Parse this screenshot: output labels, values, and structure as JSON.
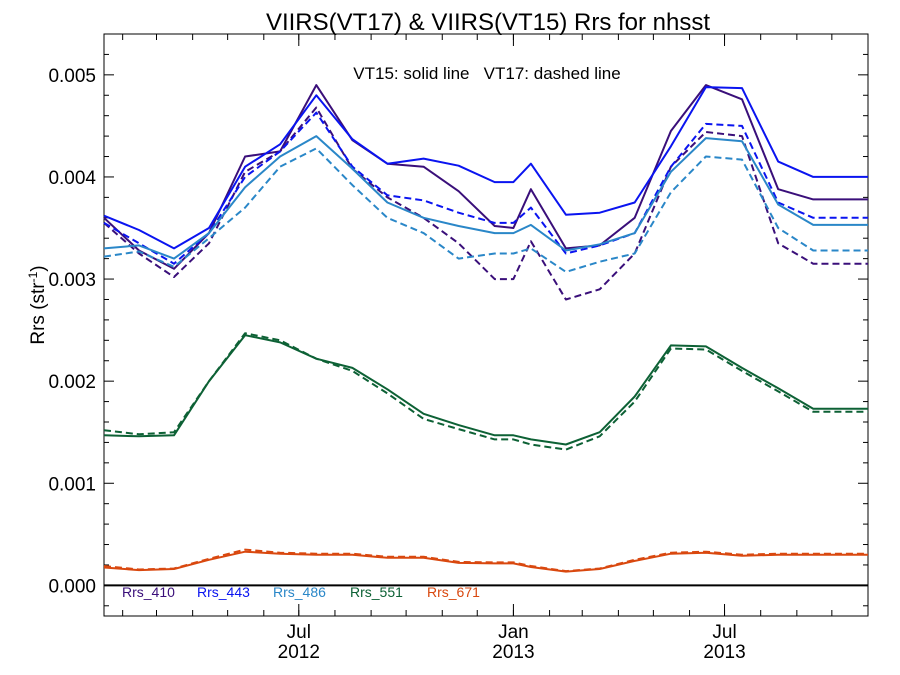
{
  "chart_data": {
    "type": "line",
    "title": "VIIRS(VT17) & VIIRS(VT15)  Rrs for nhsst",
    "annotation": "VT15: solid line   VT17: dashed line",
    "ylabel_main": "Rrs (str",
    "ylabel_sup": "-1",
    "ylabel_close": ")",
    "xlim": [
      "2012-01-16",
      "2013-11-01"
    ],
    "ylim": [
      -0.0003,
      0.0054
    ],
    "y_ticks": [
      0.0,
      0.001,
      0.002,
      0.003,
      0.004,
      0.005
    ],
    "y_tick_labels": [
      "0.000",
      "0.001",
      "0.002",
      "0.003",
      "0.004",
      "0.005"
    ],
    "x_ticks": [
      {
        "date": "2012-07-01",
        "line1": "Jul",
        "line2": "2012"
      },
      {
        "date": "2013-01-01",
        "line1": "Jan",
        "line2": "2013"
      },
      {
        "date": "2013-07-01",
        "line1": "Jul",
        "line2": "2013"
      }
    ],
    "dates": [
      "2012-01-16",
      "2012-02-15",
      "2012-03-16",
      "2012-04-15",
      "2012-05-16",
      "2012-06-15",
      "2012-07-16",
      "2012-08-16",
      "2012-09-15",
      "2012-10-16",
      "2012-11-15",
      "2012-12-16",
      "2013-01-01",
      "2013-01-16",
      "2013-02-15",
      "2013-03-16",
      "2013-04-15",
      "2013-05-16",
      "2013-06-15",
      "2013-07-16",
      "2013-08-16",
      "2013-09-15",
      "2013-10-16",
      "2013-11-01"
    ],
    "legend_position": "bottom-left",
    "series": [
      {
        "name": "Rrs_410",
        "color": "#3a0f7a",
        "vt15": [
          0.0036,
          0.00328,
          0.0031,
          0.00345,
          0.0042,
          0.00425,
          0.0049,
          0.00436,
          0.00413,
          0.0041,
          0.00386,
          0.00352,
          0.0035,
          0.00388,
          0.0033,
          0.00333,
          0.0036,
          0.00445,
          0.0049,
          0.00476,
          0.00388,
          0.00378,
          0.00378,
          0.00378
        ],
        "vt17": [
          0.00355,
          0.00325,
          0.00302,
          0.00335,
          0.00405,
          0.00425,
          0.00468,
          0.00408,
          0.0038,
          0.0036,
          0.00335,
          0.003,
          0.003,
          0.00337,
          0.0028,
          0.0029,
          0.00325,
          0.0041,
          0.00444,
          0.0044,
          0.00335,
          0.00315,
          0.00315,
          0.00315
        ]
      },
      {
        "name": "Rrs_443",
        "color": "#0a14f0",
        "vt15": [
          0.00362,
          0.00348,
          0.0033,
          0.0035,
          0.0041,
          0.00432,
          0.0048,
          0.00437,
          0.00413,
          0.00418,
          0.00411,
          0.00395,
          0.00395,
          0.00413,
          0.00363,
          0.00365,
          0.00375,
          0.0043,
          0.00488,
          0.00487,
          0.00415,
          0.004,
          0.004,
          0.004
        ],
        "vt17": [
          0.00355,
          0.00335,
          0.00315,
          0.00345,
          0.004,
          0.00425,
          0.00463,
          0.0041,
          0.00382,
          0.00377,
          0.00365,
          0.00355,
          0.00355,
          0.0037,
          0.00325,
          0.00333,
          0.00345,
          0.0041,
          0.00452,
          0.0045,
          0.00375,
          0.0036,
          0.0036,
          0.0036
        ]
      },
      {
        "name": "Rrs_486",
        "color": "#2a87c8",
        "vt15": [
          0.0033,
          0.00333,
          0.0032,
          0.00345,
          0.0039,
          0.0042,
          0.0044,
          0.00408,
          0.00375,
          0.0036,
          0.00352,
          0.00345,
          0.00345,
          0.00353,
          0.00328,
          0.00334,
          0.00345,
          0.00405,
          0.00438,
          0.00435,
          0.00373,
          0.00353,
          0.00353,
          0.00353
        ],
        "vt17": [
          0.00322,
          0.00327,
          0.00312,
          0.0034,
          0.0037,
          0.0041,
          0.00428,
          0.00392,
          0.0036,
          0.00345,
          0.0032,
          0.00325,
          0.00325,
          0.0033,
          0.00307,
          0.00317,
          0.00325,
          0.00385,
          0.0042,
          0.00417,
          0.0035,
          0.00328,
          0.00328,
          0.00328
        ]
      },
      {
        "name": "Rrs_551",
        "color": "#0d6135",
        "vt15": [
          0.00147,
          0.00146,
          0.00147,
          0.002,
          0.00245,
          0.00238,
          0.00222,
          0.00213,
          0.00192,
          0.00168,
          0.00157,
          0.00147,
          0.00147,
          0.00143,
          0.00138,
          0.0015,
          0.00185,
          0.00235,
          0.00234,
          0.00213,
          0.00193,
          0.00173,
          0.00173,
          0.00173
        ],
        "vt17": [
          0.00152,
          0.00148,
          0.0015,
          0.002,
          0.00247,
          0.0024,
          0.00222,
          0.0021,
          0.00188,
          0.00163,
          0.00153,
          0.00143,
          0.00143,
          0.00138,
          0.00133,
          0.00146,
          0.0018,
          0.00232,
          0.00231,
          0.0021,
          0.0019,
          0.0017,
          0.0017,
          0.0017
        ]
      },
      {
        "name": "Rrs_671",
        "color": "#d9480f",
        "vt15": [
          0.000175,
          0.00015,
          0.00016,
          0.00025,
          0.00033,
          0.00031,
          0.0003,
          0.0003,
          0.00027,
          0.00027,
          0.00022,
          0.000215,
          0.000215,
          0.00018,
          0.000135,
          0.00016,
          0.00024,
          0.00031,
          0.00032,
          0.00029,
          0.0003,
          0.0003,
          0.0003,
          0.0003
        ],
        "vt17": [
          0.00019,
          0.000155,
          0.000165,
          0.00026,
          0.00035,
          0.00032,
          0.00031,
          0.00031,
          0.00028,
          0.00028,
          0.00023,
          0.000225,
          0.000225,
          0.00019,
          0.00014,
          0.000165,
          0.00025,
          0.00032,
          0.00033,
          0.0003,
          0.00031,
          0.00031,
          0.00031,
          0.00031
        ]
      }
    ]
  }
}
